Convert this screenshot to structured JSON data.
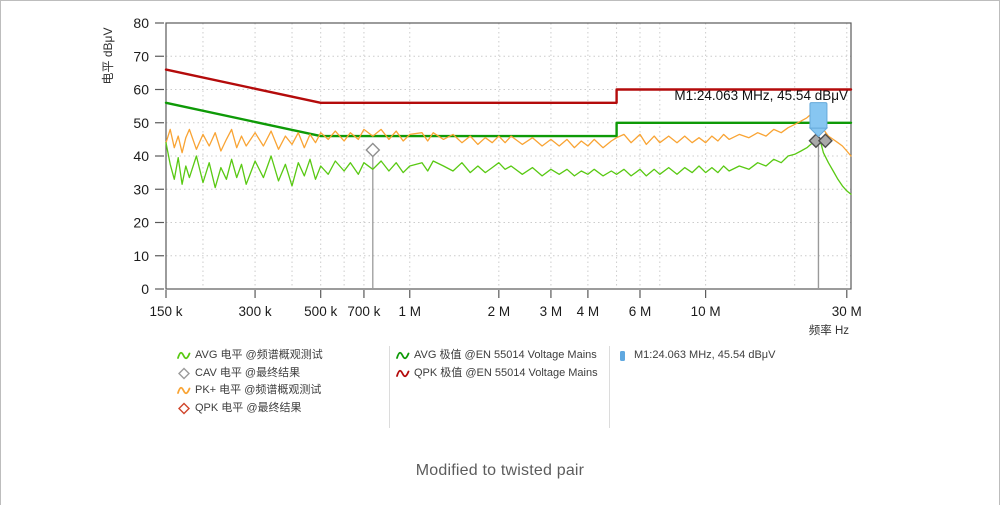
{
  "page": {
    "caption": "Modified to twisted pair"
  },
  "chart_data": {
    "type": "line",
    "title": "",
    "x_axis": {
      "label": "频率 Hz",
      "scale": "log",
      "min_hz": 150000,
      "max_hz": 31000000,
      "ticks": [
        {
          "hz": 150000,
          "label": "150 k"
        },
        {
          "hz": 300000,
          "label": "300 k"
        },
        {
          "hz": 500000,
          "label": "500 k"
        },
        {
          "hz": 700000,
          "label": "700 k"
        },
        {
          "hz": 1000000,
          "label": "1 M"
        },
        {
          "hz": 2000000,
          "label": "2 M"
        },
        {
          "hz": 3000000,
          "label": "3 M"
        },
        {
          "hz": 4000000,
          "label": "4 M"
        },
        {
          "hz": 6000000,
          "label": "6 M"
        },
        {
          "hz": 10000000,
          "label": "10 M"
        },
        {
          "hz": 30000000,
          "label": "30 M"
        }
      ],
      "grid_hz": [
        200000,
        300000,
        400000,
        500000,
        600000,
        700000,
        1000000,
        2000000,
        3000000,
        4000000,
        5000000,
        6000000,
        7000000,
        10000000,
        20000000,
        30000000
      ]
    },
    "y_axis": {
      "label": "电平 dBμV",
      "min": 0,
      "max": 80,
      "tick_step": 10,
      "grid": true
    },
    "series": [
      {
        "name": "QPK 极值 @EN 55014 Voltage Mains",
        "kind": "limit",
        "color": "#b40b0b",
        "width": 2.4,
        "points": [
          [
            0.15,
            66
          ],
          [
            0.5,
            56
          ],
          [
            5,
            56
          ],
          [
            5,
            60
          ],
          [
            31,
            60
          ]
        ]
      },
      {
        "name": "AVG 极值 @EN 55014 Voltage Mains",
        "kind": "limit",
        "color": "#0e9a07",
        "width": 2.4,
        "points": [
          [
            0.15,
            56
          ],
          [
            0.5,
            46
          ],
          [
            5,
            46
          ],
          [
            5,
            50
          ],
          [
            31,
            50
          ]
        ]
      },
      {
        "name": "PK+ 电平 @频谱概观测试",
        "kind": "trace",
        "color": "#f9a434",
        "width": 1.3,
        "points": [
          [
            0.15,
            44
          ],
          [
            0.155,
            48
          ],
          [
            0.16,
            42.5
          ],
          [
            0.165,
            46
          ],
          [
            0.17,
            41
          ],
          [
            0.175,
            45.5
          ],
          [
            0.18,
            48
          ],
          [
            0.19,
            42
          ],
          [
            0.2,
            46.5
          ],
          [
            0.21,
            43
          ],
          [
            0.22,
            47
          ],
          [
            0.23,
            41.5
          ],
          [
            0.24,
            45
          ],
          [
            0.25,
            48
          ],
          [
            0.26,
            42.5
          ],
          [
            0.27,
            46
          ],
          [
            0.28,
            43
          ],
          [
            0.3,
            47
          ],
          [
            0.32,
            43
          ],
          [
            0.34,
            47.5
          ],
          [
            0.36,
            42
          ],
          [
            0.38,
            46
          ],
          [
            0.4,
            43.5
          ],
          [
            0.42,
            47
          ],
          [
            0.44,
            42.5
          ],
          [
            0.46,
            46.5
          ],
          [
            0.48,
            44
          ],
          [
            0.5,
            47
          ],
          [
            0.53,
            45
          ],
          [
            0.56,
            47.5
          ],
          [
            0.6,
            44.5
          ],
          [
            0.63,
            47
          ],
          [
            0.67,
            45
          ],
          [
            0.7,
            48
          ],
          [
            0.75,
            46
          ],
          [
            0.8,
            48
          ],
          [
            0.85,
            45
          ],
          [
            0.9,
            47.5
          ],
          [
            0.95,
            44.5
          ],
          [
            1,
            46.5
          ],
          [
            1.1,
            47
          ],
          [
            1.15,
            44.5
          ],
          [
            1.2,
            47
          ],
          [
            1.3,
            45
          ],
          [
            1.4,
            46.5
          ],
          [
            1.5,
            44
          ],
          [
            1.6,
            46
          ],
          [
            1.7,
            43.5
          ],
          [
            1.8,
            45.5
          ],
          [
            1.9,
            44
          ],
          [
            2,
            46
          ],
          [
            2.1,
            44
          ],
          [
            2.2,
            46
          ],
          [
            2.4,
            43.5
          ],
          [
            2.6,
            45.5
          ],
          [
            2.8,
            43
          ],
          [
            3,
            45
          ],
          [
            3.2,
            43
          ],
          [
            3.4,
            45
          ],
          [
            3.6,
            42.5
          ],
          [
            3.8,
            44.5
          ],
          [
            4,
            43
          ],
          [
            4.2,
            45
          ],
          [
            4.5,
            42.5
          ],
          [
            4.8,
            44.5
          ],
          [
            5,
            45.5
          ],
          [
            5.3,
            46.5
          ],
          [
            5.6,
            44
          ],
          [
            6,
            46.5
          ],
          [
            6.3,
            43.5
          ],
          [
            6.7,
            46
          ],
          [
            7,
            44
          ],
          [
            7.5,
            46
          ],
          [
            8,
            44
          ],
          [
            8.5,
            46
          ],
          [
            9,
            44
          ],
          [
            9.5,
            45.5
          ],
          [
            10,
            44
          ],
          [
            10.5,
            46
          ],
          [
            11,
            44.5
          ],
          [
            11.5,
            46.5
          ],
          [
            12,
            45
          ],
          [
            13,
            46.5
          ],
          [
            14,
            45.5
          ],
          [
            15,
            47
          ],
          [
            16,
            46
          ],
          [
            17,
            48
          ],
          [
            18,
            47
          ],
          [
            19,
            48.5
          ],
          [
            20,
            49.5
          ],
          [
            21,
            50.5
          ],
          [
            22,
            51.5
          ],
          [
            23,
            53
          ],
          [
            24,
            52
          ],
          [
            24.5,
            49.5
          ],
          [
            25,
            48
          ],
          [
            26,
            46
          ],
          [
            27,
            45
          ],
          [
            28,
            44
          ],
          [
            29,
            43
          ],
          [
            30,
            41.5
          ],
          [
            31,
            40
          ]
        ]
      },
      {
        "name": "AVG 电平 @频谱概观测试",
        "kind": "trace",
        "color": "#59c913",
        "width": 1.3,
        "points": [
          [
            0.15,
            44
          ],
          [
            0.155,
            37.5
          ],
          [
            0.16,
            33
          ],
          [
            0.165,
            39.5
          ],
          [
            0.17,
            31.5
          ],
          [
            0.175,
            37
          ],
          [
            0.18,
            33.5
          ],
          [
            0.19,
            40
          ],
          [
            0.2,
            32
          ],
          [
            0.21,
            38
          ],
          [
            0.22,
            30.5
          ],
          [
            0.23,
            36.5
          ],
          [
            0.24,
            33
          ],
          [
            0.25,
            39
          ],
          [
            0.26,
            33.5
          ],
          [
            0.27,
            37.5
          ],
          [
            0.28,
            31.5
          ],
          [
            0.3,
            38.5
          ],
          [
            0.32,
            33.5
          ],
          [
            0.34,
            40
          ],
          [
            0.36,
            32.5
          ],
          [
            0.38,
            37.5
          ],
          [
            0.4,
            31
          ],
          [
            0.42,
            38
          ],
          [
            0.44,
            34
          ],
          [
            0.46,
            39
          ],
          [
            0.48,
            33
          ],
          [
            0.5,
            37
          ],
          [
            0.53,
            34.5
          ],
          [
            0.56,
            38.5
          ],
          [
            0.6,
            35.5
          ],
          [
            0.63,
            38
          ],
          [
            0.67,
            34.5
          ],
          [
            0.7,
            38
          ],
          [
            0.75,
            36
          ],
          [
            0.8,
            38.5
          ],
          [
            0.85,
            35.5
          ],
          [
            0.9,
            38
          ],
          [
            0.95,
            35
          ],
          [
            1,
            37
          ],
          [
            1.1,
            38
          ],
          [
            1.15,
            35.5
          ],
          [
            1.2,
            38.5
          ],
          [
            1.3,
            37
          ],
          [
            1.4,
            35.5
          ],
          [
            1.5,
            38
          ],
          [
            1.6,
            35
          ],
          [
            1.7,
            37
          ],
          [
            1.8,
            35
          ],
          [
            1.9,
            36.5
          ],
          [
            2,
            38
          ],
          [
            2.1,
            36
          ],
          [
            2.2,
            37
          ],
          [
            2.4,
            34.5
          ],
          [
            2.6,
            36.5
          ],
          [
            2.8,
            34
          ],
          [
            3,
            36
          ],
          [
            3.2,
            34.5
          ],
          [
            3.4,
            36
          ],
          [
            3.6,
            34
          ],
          [
            3.8,
            35.5
          ],
          [
            4,
            34.5
          ],
          [
            4.2,
            36
          ],
          [
            4.5,
            34
          ],
          [
            4.8,
            35.5
          ],
          [
            5,
            34.5
          ],
          [
            5.3,
            36
          ],
          [
            5.6,
            34
          ],
          [
            6,
            36
          ],
          [
            6.3,
            34
          ],
          [
            6.7,
            36
          ],
          [
            7,
            34.5
          ],
          [
            7.5,
            36.5
          ],
          [
            8,
            34.5
          ],
          [
            8.5,
            36.5
          ],
          [
            9,
            35
          ],
          [
            9.5,
            37
          ],
          [
            10,
            35
          ],
          [
            10.5,
            36.5
          ],
          [
            11,
            35
          ],
          [
            11.5,
            37
          ],
          [
            12,
            35.5
          ],
          [
            13,
            37
          ],
          [
            14,
            36
          ],
          [
            15,
            38
          ],
          [
            16,
            37
          ],
          [
            17,
            39
          ],
          [
            18,
            38
          ],
          [
            19,
            40
          ],
          [
            20,
            40.5
          ],
          [
            21,
            41.5
          ],
          [
            22,
            42.5
          ],
          [
            23,
            44
          ],
          [
            24,
            46
          ],
          [
            24.5,
            44
          ],
          [
            25,
            41
          ],
          [
            26,
            38
          ],
          [
            27,
            35.5
          ],
          [
            28,
            33
          ],
          [
            29,
            31
          ],
          [
            30,
            29.5
          ],
          [
            31,
            28.5
          ]
        ]
      }
    ],
    "markers": {
      "m1": {
        "label": "M1:24.063 MHz, 45.54 dBμV",
        "freq_mhz": 24.063,
        "value_db": 45.54,
        "flag_color": "#87c6f1",
        "flag_border": "#66a9da",
        "stem_color": "#9a9a9a"
      },
      "diamonds": [
        {
          "name": "CAV",
          "freq_mhz": 0.75,
          "value_db": 41.8,
          "fill": "#ffffff",
          "stroke": "#8f8f8f",
          "stem": true
        },
        {
          "name": "QPK-final",
          "freq_mhz": 23.6,
          "value_db": 44.6,
          "fill": "#a9a9a9",
          "stroke": "#4f4f4f",
          "stem": false
        },
        {
          "name": "CAV-final",
          "freq_mhz": 25.4,
          "value_db": 44.6,
          "fill": "#a9a9a9",
          "stroke": "#4f4f4f",
          "stem": false
        }
      ]
    }
  },
  "legend": {
    "columns": [
      {
        "items": [
          {
            "icon": "wave",
            "color": "#59c913",
            "label": "AVG 电平 @频谱概观测试"
          },
          {
            "icon": "diamond",
            "color": "#9b9b9b",
            "label": "CAV 电平 @最终结果"
          },
          {
            "icon": "wave",
            "color": "#f9a434",
            "label": "PK+ 电平 @频谱概观测试"
          },
          {
            "icon": "diamond",
            "color": "#d0452b",
            "label": "QPK 电平 @最终结果"
          }
        ]
      },
      {
        "items": [
          {
            "icon": "wave",
            "color": "#0e9a07",
            "label": "AVG 极值 @EN 55014 Voltage Mains"
          },
          {
            "icon": "wave",
            "color": "#b40b0b",
            "label": "QPK 极值 @EN 55014 Voltage Mains"
          }
        ]
      },
      {
        "items": [
          {
            "icon": "flag",
            "color": "#5fa8e0",
            "label": "M1:24.063 MHz, 45.54 dBμV"
          }
        ]
      }
    ]
  }
}
